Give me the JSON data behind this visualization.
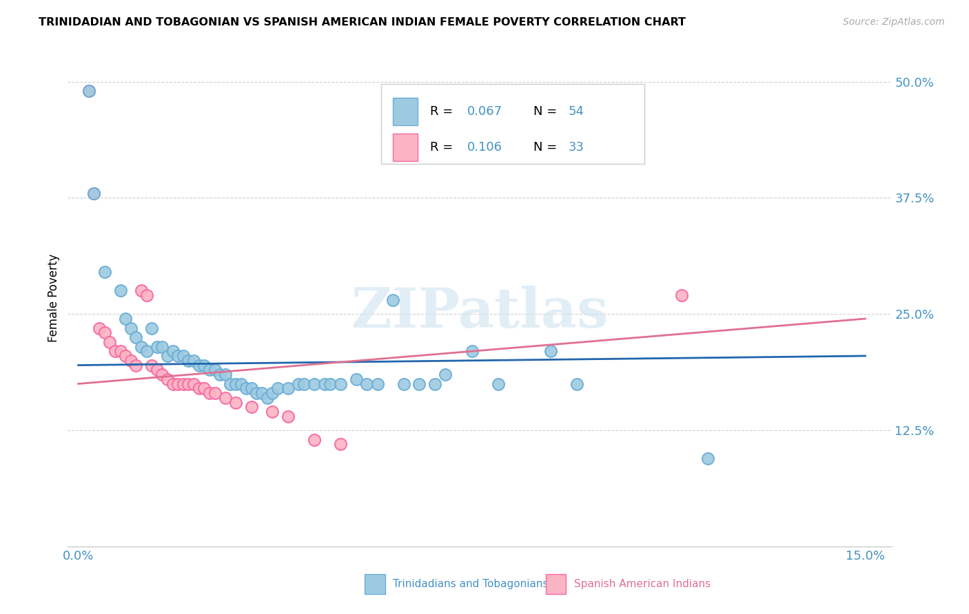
{
  "title": "TRINIDADIAN AND TOBAGONIAN VS SPANISH AMERICAN INDIAN FEMALE POVERTY CORRELATION CHART",
  "source": "Source: ZipAtlas.com",
  "ylabel": "Female Poverty",
  "y_ticks": [
    0.0,
    0.125,
    0.25,
    0.375,
    0.5
  ],
  "y_tick_labels": [
    "",
    "12.5%",
    "25.0%",
    "37.5%",
    "50.0%"
  ],
  "x_ticks": [
    0.0,
    0.03,
    0.06,
    0.09,
    0.12,
    0.15
  ],
  "x_tick_labels": [
    "0.0%",
    "",
    "",
    "",
    "",
    "15.0%"
  ],
  "xlim": [
    -0.002,
    0.155
  ],
  "ylim": [
    0.02,
    0.535
  ],
  "color_blue": "#9ecae1",
  "color_pink": "#fbb4c3",
  "color_blue_edge": "#6baed6",
  "color_pink_edge": "#f768a1",
  "color_blue_text": "#4393c3",
  "color_pink_text": "#e07090",
  "line_blue": "#2166ac",
  "line_pink": "#e07090",
  "watermark": "ZIPatlas",
  "legend_label1": "Trinidadians and Tobagonians",
  "legend_label2": "Spanish American Indians",
  "blue_points": [
    [
      0.002,
      0.49
    ],
    [
      0.003,
      0.38
    ],
    [
      0.005,
      0.295
    ],
    [
      0.008,
      0.275
    ],
    [
      0.009,
      0.245
    ],
    [
      0.01,
      0.235
    ],
    [
      0.011,
      0.225
    ],
    [
      0.012,
      0.215
    ],
    [
      0.013,
      0.21
    ],
    [
      0.014,
      0.235
    ],
    [
      0.015,
      0.215
    ],
    [
      0.016,
      0.215
    ],
    [
      0.017,
      0.205
    ],
    [
      0.018,
      0.21
    ],
    [
      0.019,
      0.205
    ],
    [
      0.02,
      0.205
    ],
    [
      0.021,
      0.2
    ],
    [
      0.022,
      0.2
    ],
    [
      0.023,
      0.195
    ],
    [
      0.024,
      0.195
    ],
    [
      0.025,
      0.19
    ],
    [
      0.026,
      0.19
    ],
    [
      0.027,
      0.185
    ],
    [
      0.028,
      0.185
    ],
    [
      0.029,
      0.175
    ],
    [
      0.03,
      0.175
    ],
    [
      0.031,
      0.175
    ],
    [
      0.032,
      0.17
    ],
    [
      0.033,
      0.17
    ],
    [
      0.034,
      0.165
    ],
    [
      0.035,
      0.165
    ],
    [
      0.036,
      0.16
    ],
    [
      0.037,
      0.165
    ],
    [
      0.038,
      0.17
    ],
    [
      0.04,
      0.17
    ],
    [
      0.042,
      0.175
    ],
    [
      0.043,
      0.175
    ],
    [
      0.045,
      0.175
    ],
    [
      0.047,
      0.175
    ],
    [
      0.048,
      0.175
    ],
    [
      0.05,
      0.175
    ],
    [
      0.053,
      0.18
    ],
    [
      0.055,
      0.175
    ],
    [
      0.057,
      0.175
    ],
    [
      0.06,
      0.265
    ],
    [
      0.062,
      0.175
    ],
    [
      0.065,
      0.175
    ],
    [
      0.068,
      0.175
    ],
    [
      0.07,
      0.185
    ],
    [
      0.075,
      0.21
    ],
    [
      0.08,
      0.175
    ],
    [
      0.09,
      0.21
    ],
    [
      0.095,
      0.175
    ],
    [
      0.12,
      0.095
    ]
  ],
  "pink_points": [
    [
      0.002,
      0.49
    ],
    [
      0.003,
      0.38
    ],
    [
      0.004,
      0.235
    ],
    [
      0.005,
      0.23
    ],
    [
      0.006,
      0.22
    ],
    [
      0.007,
      0.21
    ],
    [
      0.008,
      0.21
    ],
    [
      0.009,
      0.205
    ],
    [
      0.01,
      0.2
    ],
    [
      0.011,
      0.195
    ],
    [
      0.012,
      0.275
    ],
    [
      0.013,
      0.27
    ],
    [
      0.014,
      0.195
    ],
    [
      0.015,
      0.19
    ],
    [
      0.016,
      0.185
    ],
    [
      0.017,
      0.18
    ],
    [
      0.018,
      0.175
    ],
    [
      0.019,
      0.175
    ],
    [
      0.02,
      0.175
    ],
    [
      0.021,
      0.175
    ],
    [
      0.022,
      0.175
    ],
    [
      0.023,
      0.17
    ],
    [
      0.024,
      0.17
    ],
    [
      0.025,
      0.165
    ],
    [
      0.026,
      0.165
    ],
    [
      0.028,
      0.16
    ],
    [
      0.03,
      0.155
    ],
    [
      0.033,
      0.15
    ],
    [
      0.037,
      0.145
    ],
    [
      0.04,
      0.14
    ],
    [
      0.045,
      0.115
    ],
    [
      0.05,
      0.11
    ],
    [
      0.115,
      0.27
    ]
  ],
  "blue_trend_x": [
    0.0,
    0.15
  ],
  "blue_trend_y": [
    0.195,
    0.205
  ],
  "pink_trend_x": [
    0.0,
    0.15
  ],
  "pink_trend_y": [
    0.175,
    0.245
  ]
}
